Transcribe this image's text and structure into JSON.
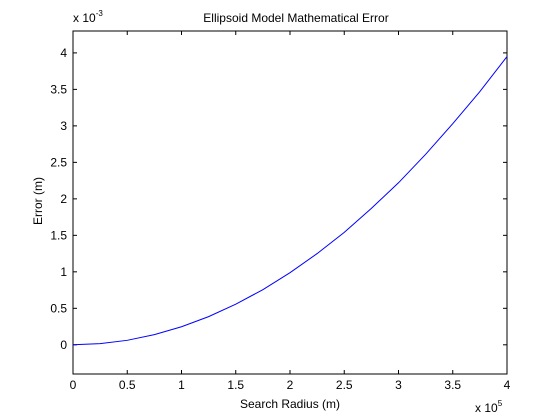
{
  "chart_data": {
    "type": "line",
    "title": "Ellipsoid Model Mathematical Error",
    "xlabel": "Search Radius (m)",
    "ylabel": "Error (m)",
    "x_multiplier": {
      "base": "x 10",
      "exponent": "5"
    },
    "y_multiplier": {
      "base": "x 10",
      "exponent": "-3"
    },
    "xlim": [
      0,
      400000
    ],
    "ylim": [
      -0.0004,
      0.0043
    ],
    "x_ticks": [
      0,
      50000,
      100000,
      150000,
      200000,
      250000,
      300000,
      350000,
      400000
    ],
    "x_tick_labels": [
      "0",
      "0.5",
      "1",
      "1.5",
      "2",
      "2.5",
      "3",
      "3.5",
      "4"
    ],
    "y_ticks": [
      0,
      0.0005,
      0.001,
      0.0015,
      0.002,
      0.0025,
      0.003,
      0.0035,
      0.004
    ],
    "y_tick_labels": [
      "0",
      "0.5",
      "1",
      "1.5",
      "2",
      "2.5",
      "3",
      "3.5",
      "4"
    ],
    "grid": false,
    "series": [
      {
        "color": "#0000ff",
        "x": [
          0,
          25000,
          50000,
          75000,
          100000,
          125000,
          150000,
          175000,
          200000,
          225000,
          250000,
          275000,
          300000,
          325000,
          350000,
          375000,
          400000
        ],
        "y": [
          0,
          1.54e-05,
          6.17e-05,
          0.000139,
          0.000247,
          0.000386,
          0.000556,
          0.000756,
          0.000988,
          0.00125,
          0.00154,
          0.00187,
          0.00222,
          0.00261,
          0.00303,
          0.00347,
          0.00395
        ]
      }
    ]
  }
}
